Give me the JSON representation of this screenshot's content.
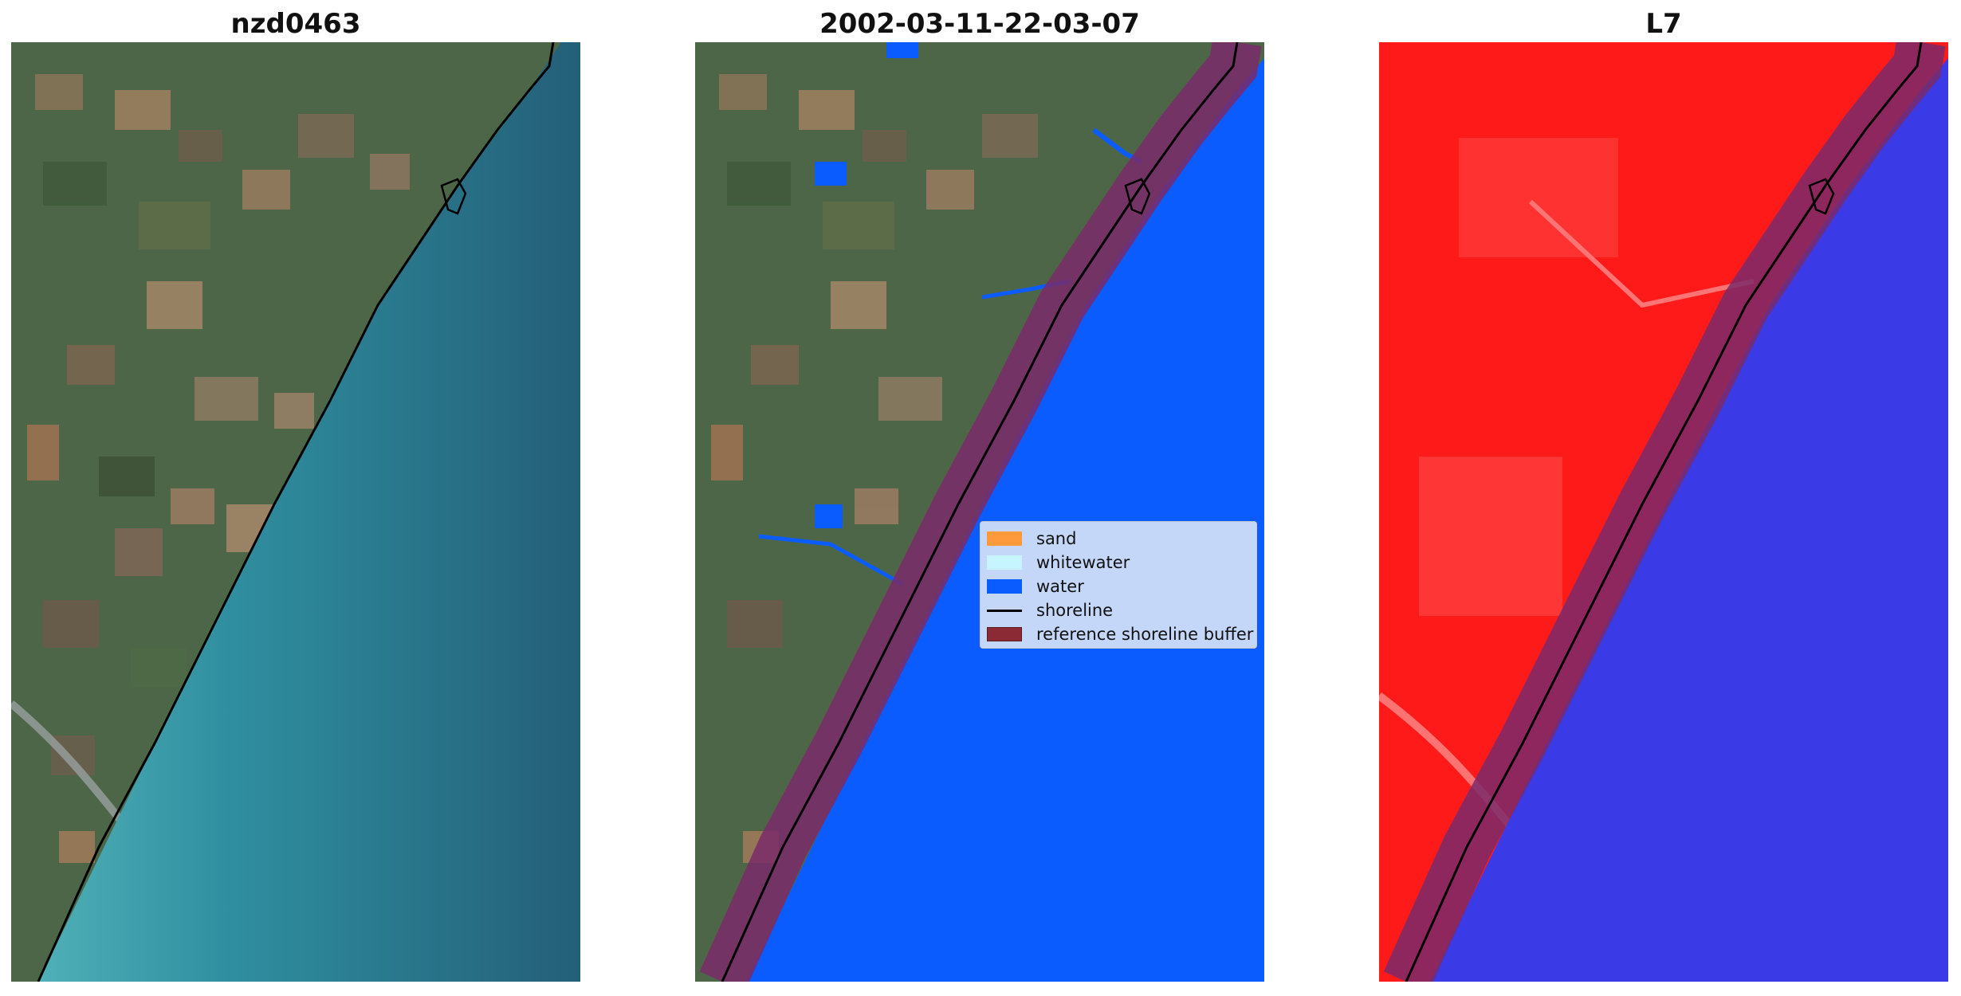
{
  "titles": {
    "panel1": "nzd0463",
    "panel2": "2002-03-11-22-03-07",
    "panel3": "L7"
  },
  "legend": {
    "items": [
      {
        "label": "sand",
        "color": "#ff9a3c",
        "kind": "patch"
      },
      {
        "label": "whitewater",
        "color": "#c7f5ff",
        "kind": "patch"
      },
      {
        "label": "water",
        "color": "#0a5cff",
        "kind": "patch"
      },
      {
        "label": "shoreline",
        "color": "#000000",
        "kind": "line"
      },
      {
        "label": "reference shoreline buffer",
        "color": "#8b2a35",
        "kind": "patch"
      }
    ]
  },
  "colors": {
    "land_green": "#4e6b45",
    "sea_teal": "#2c8fa0",
    "sea_deep": "#2a6f84",
    "classified_water": "#0a5cff",
    "buffer": "#7a2a6a",
    "nir_land": "#ff1a1a",
    "nir_water": "#3a3ae6"
  }
}
